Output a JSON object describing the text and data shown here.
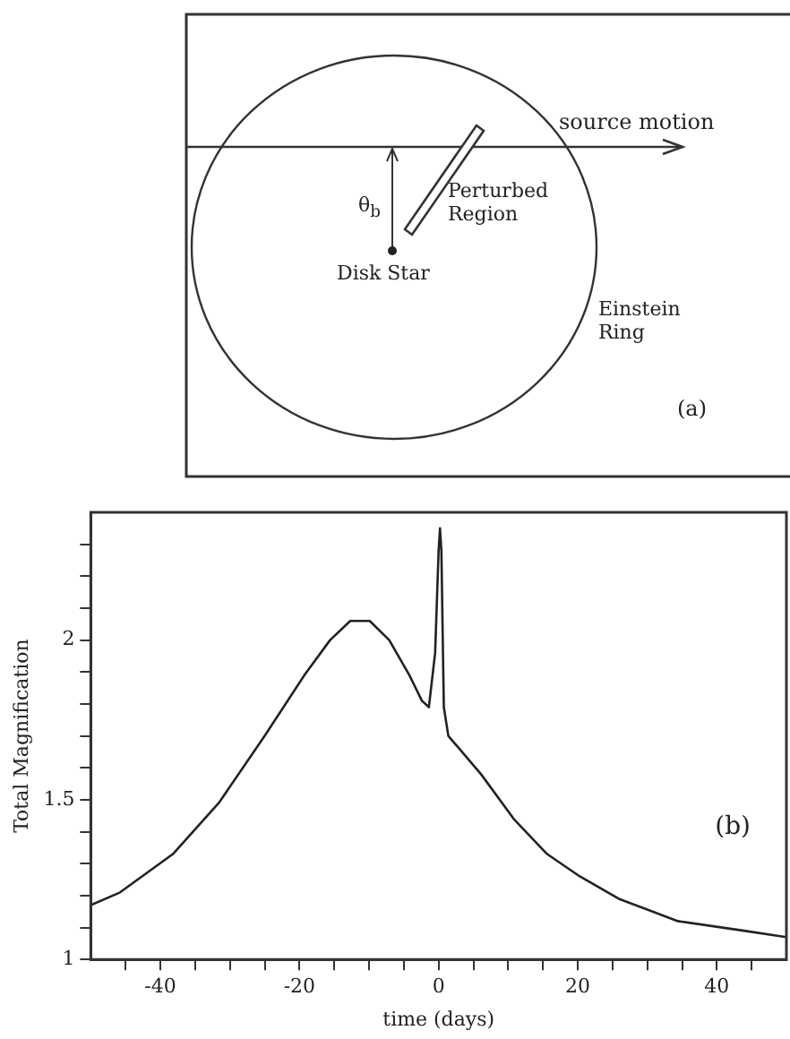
{
  "chart_data": [
    {
      "type": "other",
      "annotations": [
        "source motion",
        "Perturbed Region",
        "θ$_{b}$",
        "Disk Star",
        "Einstein Ring",
        "(a)"
      ]
    },
    {
      "type": "line",
      "xlabel": "time (days)",
      "ylabel": "Total Magnification",
      "marker": "none",
      "color": "#222222",
      "x": [
        -50,
        -45.8,
        -38.2,
        -31.6,
        -25,
        -19.3,
        -15.6,
        -12.7,
        -9.9,
        -7.1,
        -4.2,
        -2.4,
        -1.4,
        -0.5,
        0,
        0.2,
        0.4,
        0.75,
        1.4,
        6.1,
        10.8,
        15.6,
        20.3,
        25.9,
        34.4,
        43.9,
        50
      ],
      "values": [
        1.17,
        1.21,
        1.33,
        1.49,
        1.7,
        1.89,
        2.0,
        2.06,
        2.06,
        2.0,
        1.89,
        1.81,
        1.79,
        1.96,
        2.28,
        2.35,
        2.28,
        1.79,
        1.7,
        1.58,
        1.44,
        1.33,
        1.26,
        1.19,
        1.12,
        1.09,
        1.07
      ],
      "xlim": [
        -50,
        50
      ],
      "ylim": [
        1,
        2.4
      ],
      "xticks": [
        {
          "value": -45,
          "label": null
        },
        -40,
        {
          "value": -35,
          "label": null
        },
        {
          "value": -30,
          "label": null
        },
        {
          "value": -25,
          "label": null
        },
        -20,
        {
          "value": -15,
          "label": null
        },
        {
          "value": -10,
          "label": null
        },
        {
          "value": -5,
          "label": null
        },
        0,
        {
          "value": 5,
          "label": null
        },
        {
          "value": 10,
          "label": null
        },
        {
          "value": 15,
          "label": null
        },
        20,
        {
          "value": 25,
          "label": null
        },
        {
          "value": 30,
          "label": null
        },
        {
          "value": 35,
          "label": null
        },
        40,
        {
          "value": 45,
          "label": null
        }
      ],
      "yticks": [
        1,
        {
          "value": 1.1,
          "label": null
        },
        {
          "value": 1.2,
          "label": null
        },
        {
          "value": 1.3,
          "label": null
        },
        {
          "value": 1.4,
          "label": null
        },
        1.5,
        {
          "value": 1.6,
          "label": null
        },
        {
          "value": 1.7,
          "label": null
        },
        {
          "value": 1.8,
          "label": null
        },
        {
          "value": 1.9,
          "label": null
        },
        2,
        {
          "value": 2.1,
          "label": null
        },
        {
          "value": 2.2,
          "label": null
        },
        {
          "value": 2.3,
          "label": null
        }
      ],
      "annotations": [
        "(b)"
      ]
    }
  ]
}
